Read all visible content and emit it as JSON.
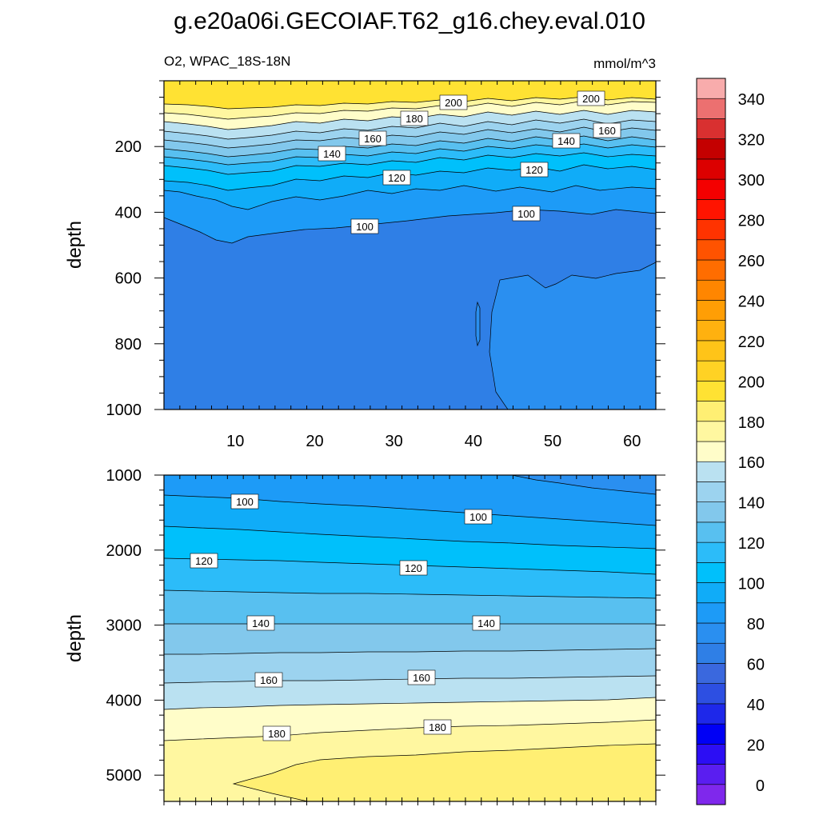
{
  "chart_data": {
    "type": "contour",
    "title": "g.e20a06i.GECOIAF.T62_g16.chey.eval.010",
    "subtitle_left": "O2, WPAC_18S-18N",
    "subtitle_right": "mmol/m^3",
    "colorbar": {
      "levels": [
        0,
        10,
        20,
        30,
        40,
        50,
        60,
        70,
        80,
        90,
        100,
        110,
        120,
        130,
        140,
        150,
        160,
        170,
        180,
        190,
        200,
        210,
        220,
        230,
        240,
        250,
        260,
        270,
        280,
        290,
        300,
        310,
        320,
        330,
        340,
        350
      ],
      "tick_labels": [
        "0",
        "20",
        "40",
        "60",
        "80",
        "100",
        "120",
        "140",
        "160",
        "180",
        "200",
        "220",
        "240",
        "260",
        "280",
        "300",
        "320",
        "340"
      ],
      "colors": [
        "#7f28ec",
        "#5a1ef0",
        "#2c0ef4",
        "#0000f5",
        "#1e28ea",
        "#2d4fe2",
        "#3a68de",
        "#2f7fe6",
        "#2a8ff0",
        "#1d9bf7",
        "#10acf8",
        "#00c0fb",
        "#2cbcf9",
        "#58c0f0",
        "#82c8ec",
        "#9cd3ef",
        "#bae1f1",
        "#fffdc9",
        "#fff7a0",
        "#ffef73",
        "#ffe233",
        "#ffd224",
        "#ffc418",
        "#ffb10f",
        "#ff9e05",
        "#ff8600",
        "#ff6d00",
        "#ff5300",
        "#ff3300",
        "#ff1400",
        "#f40000",
        "#dc0000",
        "#c40000",
        "#d93030",
        "#ec7070",
        "#f8acac"
      ]
    },
    "panels": [
      {
        "name": "upper",
        "ylabel": "depth",
        "ylim": [
          1000,
          0
        ],
        "xlim": [
          1,
          63
        ],
        "x_ticks": [
          10,
          20,
          30,
          40,
          50,
          60
        ],
        "y_ticks": [
          200,
          400,
          600,
          800,
          1000
        ],
        "contour_labels": [
          {
            "text": "200",
            "x": 36,
            "y": 110
          },
          {
            "text": "200",
            "x": 54,
            "y": 100
          },
          {
            "text": "180",
            "x": 32,
            "y": 160
          },
          {
            "text": "160",
            "x": 27,
            "y": 210
          },
          {
            "text": "160",
            "x": 56,
            "y": 190
          },
          {
            "text": "140",
            "x": 22,
            "y": 250
          },
          {
            "text": "140",
            "x": 52,
            "y": 220
          },
          {
            "text": "120",
            "x": 31,
            "y": 320
          },
          {
            "text": "120",
            "x": 48,
            "y": 280
          },
          {
            "text": "100",
            "x": 26,
            "y": 470
          },
          {
            "text": "100",
            "x": 47,
            "y": 415
          }
        ]
      },
      {
        "name": "lower",
        "ylabel": "depth",
        "ylim": [
          5350,
          1000
        ],
        "y_ticks": [
          1000,
          2000,
          3000,
          4000,
          5000
        ],
        "contour_labels": [
          {
            "text": "100",
            "x": 12,
            "y": 1350
          },
          {
            "text": "100",
            "x": 40,
            "y": 1570
          },
          {
            "text": "120",
            "x": 6,
            "y": 2150
          },
          {
            "text": "120",
            "x": 32,
            "y": 2250
          },
          {
            "text": "140",
            "x": 13,
            "y": 3000
          },
          {
            "text": "140",
            "x": 41,
            "y": 3000
          },
          {
            "text": "160",
            "x": 14,
            "y": 3820
          },
          {
            "text": "160",
            "x": 33,
            "y": 3790
          },
          {
            "text": "180",
            "x": 15,
            "y": 4480
          },
          {
            "text": "180",
            "x": 35,
            "y": 4380
          }
        ]
      }
    ]
  }
}
